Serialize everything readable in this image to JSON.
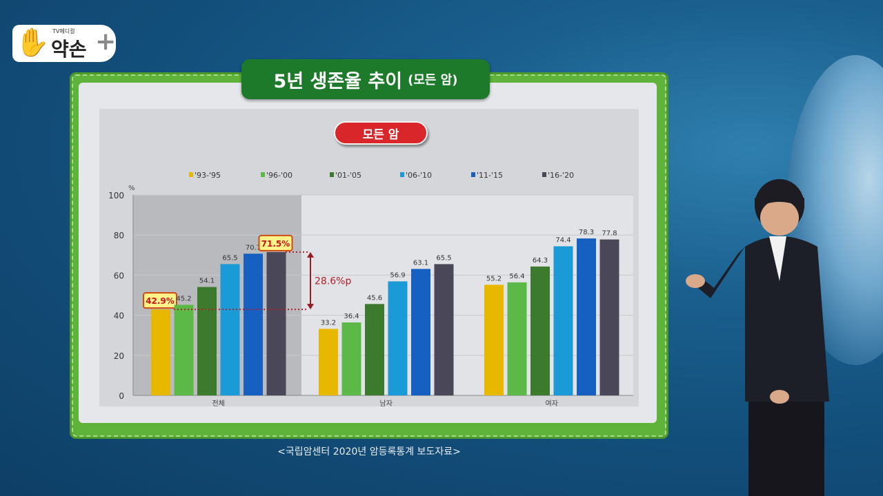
{
  "logo": {
    "small_text": "TV메디컬",
    "brand_text": "약손",
    "plus": "+"
  },
  "title": {
    "main": "5년 생존율 추이",
    "sub": "(모든 암)"
  },
  "badge": "모든 암",
  "source": "<국립암센터 2020년 암등록통계 보도자료>",
  "chart_data": {
    "type": "bar",
    "ylabel": "%",
    "ylim": [
      0,
      100
    ],
    "yticks": [
      0,
      20,
      40,
      60,
      80,
      100
    ],
    "categories": [
      "전체",
      "남자",
      "여자"
    ],
    "series": [
      {
        "name": "'93-'95",
        "color": "#e8b800",
        "values": [
          42.9,
          33.2,
          55.2
        ]
      },
      {
        "name": "'96-'00",
        "color": "#5cb947",
        "values": [
          45.2,
          36.4,
          56.4
        ]
      },
      {
        "name": "'01-'05",
        "color": "#3c7a2e",
        "values": [
          54.1,
          45.6,
          64.3
        ]
      },
      {
        "name": "'06-'10",
        "color": "#1a9ad6",
        "values": [
          65.5,
          56.9,
          74.4
        ]
      },
      {
        "name": "'11-'15",
        "color": "#1560c0",
        "values": [
          70.7,
          63.1,
          78.3
        ]
      },
      {
        "name": "'16-'20",
        "color": "#4a4858",
        "values": [
          71.5,
          65.5,
          77.8
        ]
      }
    ],
    "data_labels": [
      [
        "42.9%",
        "45.2",
        "54.1",
        "65.5",
        "70.7",
        "71.5%"
      ],
      [
        "33.2",
        "36.4",
        "45.6",
        "56.9",
        "63.1",
        "65.5"
      ],
      [
        "55.2",
        "56.4",
        "64.3",
        "74.4",
        "78.3",
        "77.8"
      ]
    ],
    "highlighted_labels": [
      "42.9%",
      "71.5%"
    ],
    "annotation": "28.6%p",
    "legend_position": "top",
    "grid": true
  }
}
